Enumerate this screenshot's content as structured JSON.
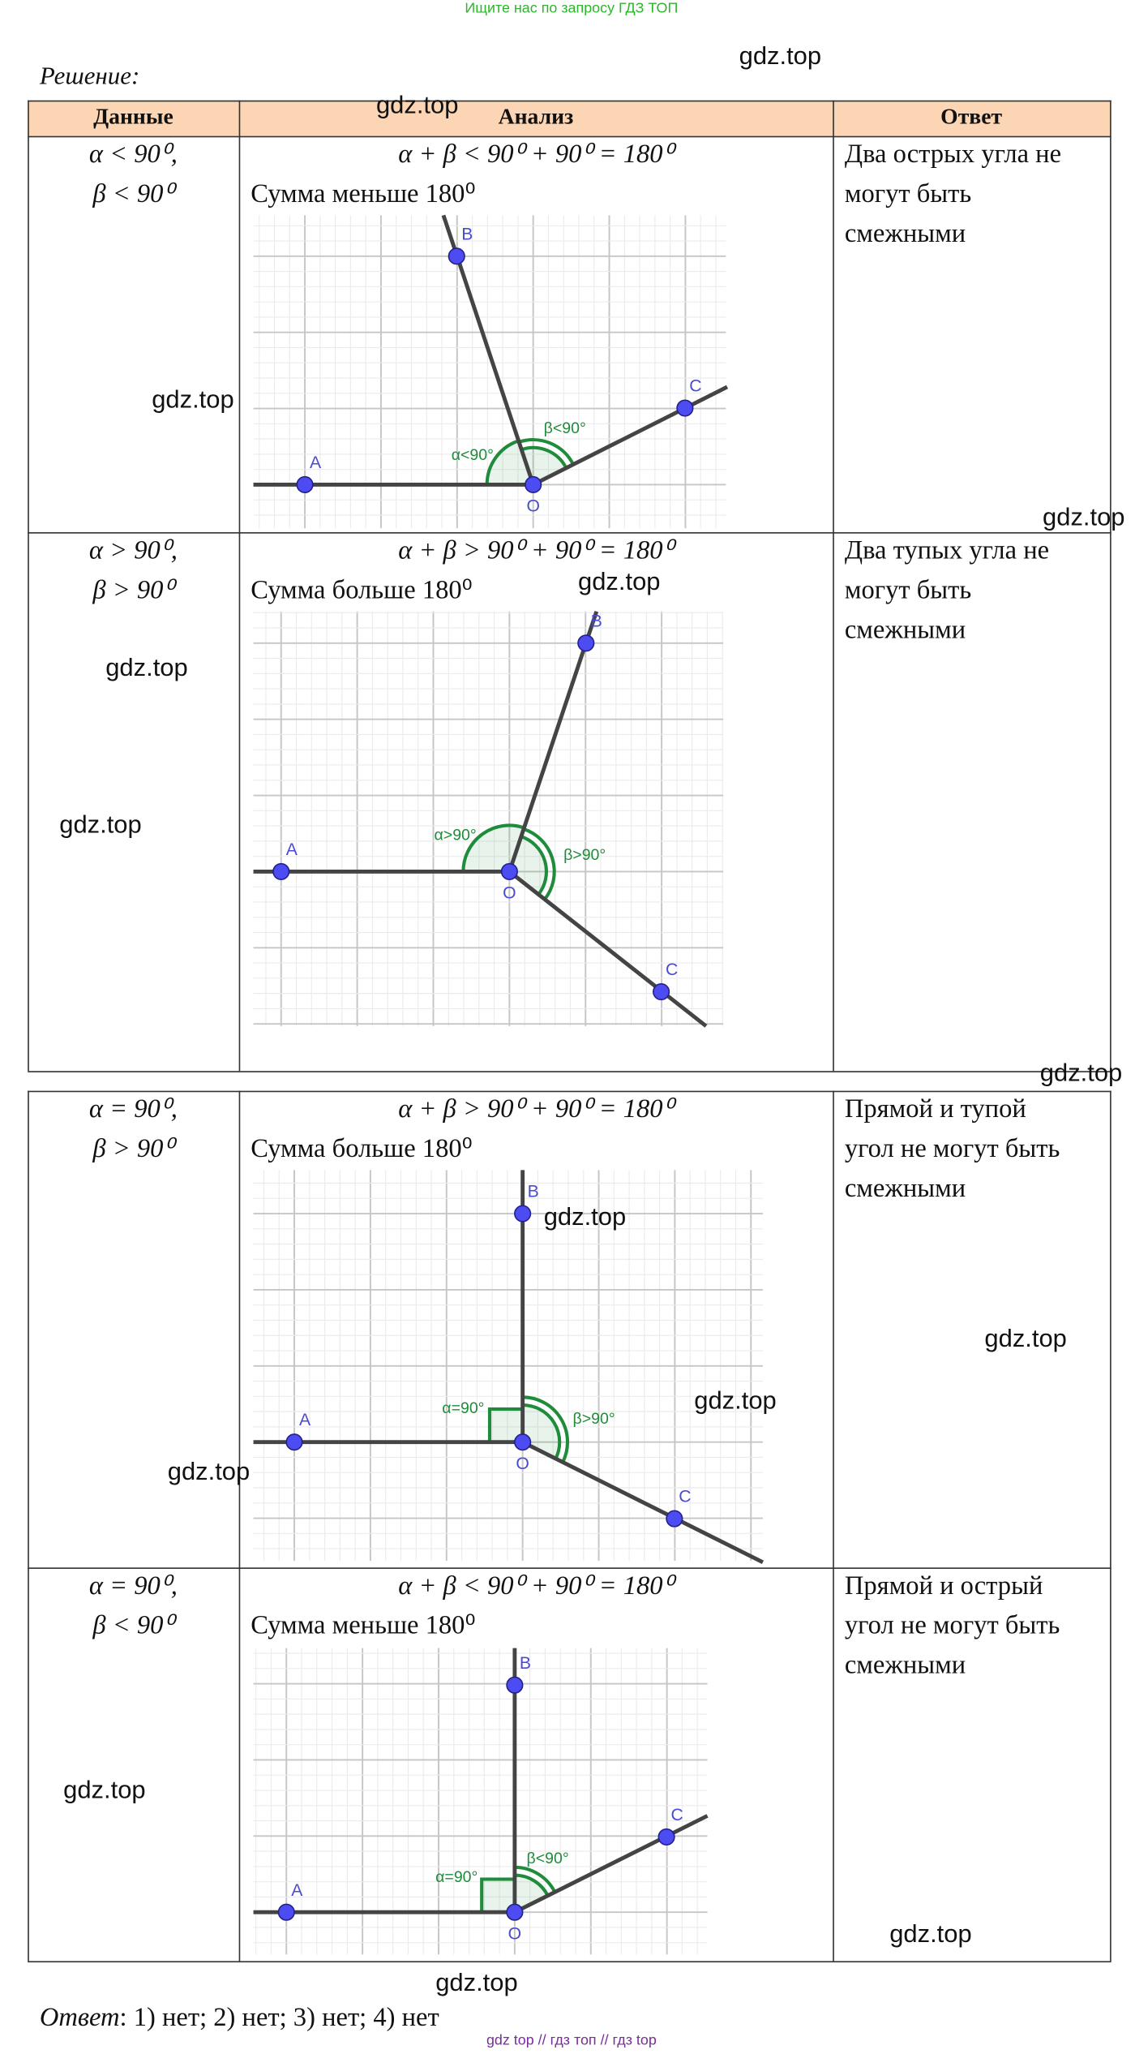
{
  "top_note": "Ищите нас по запросу ГДЗ ТОП",
  "solution_label": "Решение:",
  "headers": [
    "Данные",
    "Анализ",
    "Ответ"
  ],
  "rows": [
    {
      "data": [
        "α < 90⁰,",
        "β < 90⁰"
      ],
      "formula": "α + β < 90⁰ + 90⁰ = 180⁰",
      "sum": "Сумма меньше 180⁰",
      "answer": [
        "Два острых угла не",
        "могут быть",
        "смежными"
      ],
      "diagram": {
        "points": [
          "A",
          "B",
          "C",
          "O"
        ],
        "alpha": "α<90°",
        "beta": "β<90°"
      }
    },
    {
      "data": [
        "α > 90⁰,",
        "β > 90⁰"
      ],
      "formula": "α + β > 90⁰ + 90⁰ = 180⁰",
      "sum": "Сумма больше 180⁰",
      "answer": [
        "Два тупых угла не",
        "могут быть",
        "смежными"
      ],
      "diagram": {
        "points": [
          "A",
          "B",
          "C",
          "O"
        ],
        "alpha": "α>90°",
        "beta": "β>90°"
      }
    },
    {
      "data": [
        "α = 90⁰,",
        "β > 90⁰"
      ],
      "formula": "α + β > 90⁰ + 90⁰ = 180⁰",
      "sum": "Сумма больше 180⁰",
      "answer": [
        "Прямой и тупой",
        "угол не могут быть",
        "смежными"
      ],
      "diagram": {
        "points": [
          "A",
          "B",
          "C",
          "O"
        ],
        "alpha": "α=90°",
        "beta": "β>90°"
      }
    },
    {
      "data": [
        "α = 90⁰,",
        "β < 90⁰"
      ],
      "formula": "α + β < 90⁰ + 90⁰ = 180⁰",
      "sum": "Сумма меньше 180⁰",
      "answer": [
        "Прямой и острый",
        "угол не могут быть",
        "смежными"
      ],
      "diagram": {
        "points": [
          "A",
          "B",
          "C",
          "O"
        ],
        "alpha": "α=90°",
        "beta": "β<90°"
      }
    }
  ],
  "watermarks": [
    "gdz.top",
    "gdz.top",
    "gdz.top",
    "gdz.top",
    "gdz.top",
    "gdz.top",
    "gdz.top",
    "gdz.top",
    "gdz.top",
    "gdz.top",
    "gdz.top",
    "gdz.top",
    "gdz.top",
    "gdz.top",
    "gdz.top"
  ],
  "final_answer": {
    "label": "Ответ",
    "text": ": 1) нет; 2) нет; 3) нет; 4) нет"
  },
  "footer": "gdz top // гдз топ // гдз top"
}
